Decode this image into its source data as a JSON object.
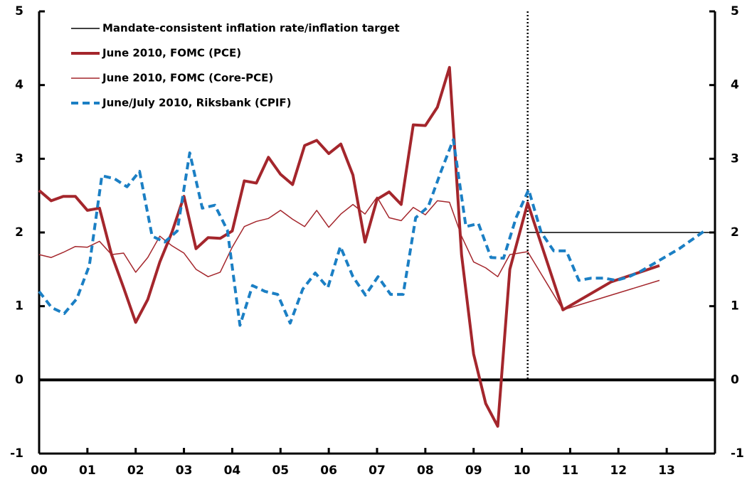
{
  "chart_data": {
    "type": "line",
    "xlim": [
      2000,
      2014
    ],
    "xticks": [
      {
        "value": 2000,
        "label": "00"
      },
      {
        "value": 2001,
        "label": "01"
      },
      {
        "value": 2002,
        "label": "02"
      },
      {
        "value": 2003,
        "label": "03"
      },
      {
        "value": 2004,
        "label": "04"
      },
      {
        "value": 2005,
        "label": "05"
      },
      {
        "value": 2006,
        "label": "06"
      },
      {
        "value": 2007,
        "label": "07"
      },
      {
        "value": 2008,
        "label": "08"
      },
      {
        "value": 2009,
        "label": "09"
      },
      {
        "value": 2010,
        "label": "10"
      },
      {
        "value": 2011,
        "label": "11"
      },
      {
        "value": 2012,
        "label": "12"
      },
      {
        "value": 2013,
        "label": "13"
      }
    ],
    "ylim": [
      -1,
      5
    ],
    "yticks": [
      -1,
      0,
      1,
      2,
      3,
      4,
      5
    ],
    "y2lim": [
      -1,
      5
    ],
    "y2ticks": [
      -1,
      0,
      1,
      2,
      3,
      4,
      5
    ],
    "grid": false,
    "legend": "upper left",
    "forecast_start": 2010.12,
    "series": [
      {
        "name": "Mandate-consistent inflation rate/inflation target",
        "color": "#000000",
        "line_width": 1.5,
        "dashed": false,
        "x": [
          2010.12,
          2014
        ],
        "values": [
          2,
          2
        ]
      },
      {
        "name": "June 2010, FOMC (PCE)",
        "color": "#a4262c",
        "line_width": 4,
        "dashed": false,
        "x": [
          2000,
          2000.25,
          2000.5,
          2000.75,
          2001,
          2001.25,
          2001.5,
          2001.75,
          2002,
          2002.25,
          2002.5,
          2002.75,
          2003,
          2003.25,
          2003.5,
          2003.75,
          2004,
          2004.25,
          2004.5,
          2004.75,
          2005,
          2005.25,
          2005.5,
          2005.75,
          2006,
          2006.25,
          2006.5,
          2006.75,
          2007,
          2007.25,
          2007.5,
          2007.75,
          2008,
          2008.25,
          2008.5,
          2008.75,
          2009,
          2009.25,
          2009.5,
          2009.75,
          2010.12,
          2010.85,
          2011.85,
          2012.85
        ],
        "values": [
          2.57,
          2.43,
          2.49,
          2.49,
          2.3,
          2.33,
          1.7,
          1.25,
          0.78,
          1.09,
          1.6,
          2.0,
          2.49,
          1.78,
          1.93,
          1.92,
          2.02,
          2.7,
          2.67,
          3.02,
          2.79,
          2.65,
          3.18,
          3.25,
          3.07,
          3.2,
          2.78,
          1.87,
          2.45,
          2.55,
          2.38,
          3.46,
          3.45,
          3.7,
          4.24,
          1.7,
          0.35,
          -0.32,
          -0.63,
          1.5,
          2.4,
          0.95,
          1.33,
          1.55
        ]
      },
      {
        "name": "June 2010, FOMC (Core-PCE)",
        "color": "#a4262c",
        "line_width": 1.5,
        "dashed": false,
        "x": [
          2000,
          2000.25,
          2000.5,
          2000.75,
          2001,
          2001.25,
          2001.5,
          2001.75,
          2002,
          2002.25,
          2002.5,
          2002.75,
          2003,
          2003.25,
          2003.5,
          2003.75,
          2004,
          2004.25,
          2004.5,
          2004.75,
          2005,
          2005.25,
          2005.5,
          2005.75,
          2006,
          2006.25,
          2006.5,
          2006.75,
          2007,
          2007.25,
          2007.5,
          2007.75,
          2008,
          2008.25,
          2008.5,
          2008.75,
          2009,
          2009.25,
          2009.5,
          2009.75,
          2010.12,
          2010.85,
          2011.85,
          2012.85
        ],
        "values": [
          1.7,
          1.66,
          1.73,
          1.81,
          1.8,
          1.88,
          1.7,
          1.72,
          1.46,
          1.66,
          1.95,
          1.82,
          1.72,
          1.5,
          1.4,
          1.46,
          1.8,
          2.08,
          2.15,
          2.19,
          2.3,
          2.18,
          2.08,
          2.3,
          2.07,
          2.25,
          2.38,
          2.25,
          2.48,
          2.2,
          2.16,
          2.34,
          2.24,
          2.43,
          2.41,
          1.95,
          1.6,
          1.52,
          1.4,
          1.7,
          1.74,
          0.95,
          1.15,
          1.35
        ]
      },
      {
        "name": "June/July 2010, Riksbank (CPIF)",
        "color": "#1b7fc4",
        "line_width": 4,
        "dashed": true,
        "x": [
          2000,
          2000.26,
          2000.52,
          2000.78,
          2001.04,
          2001.3,
          2001.56,
          2001.82,
          2002.08,
          2002.34,
          2002.6,
          2002.86,
          2003.12,
          2003.38,
          2003.64,
          2003.9,
          2004.16,
          2004.42,
          2004.68,
          2004.94,
          2005.2,
          2005.46,
          2005.72,
          2005.98,
          2006.24,
          2006.5,
          2006.76,
          2007.02,
          2007.28,
          2007.54,
          2007.8,
          2008.06,
          2008.32,
          2008.58,
          2008.84,
          2009.1,
          2009.36,
          2009.62,
          2009.88,
          2010.14,
          2010.4,
          2010.66,
          2010.92,
          2011.18,
          2011.44,
          2011.7,
          2011.96,
          2012.22,
          2012.48,
          2012.74,
          2013,
          2013.26,
          2013.52,
          2013.78
        ],
        "values": [
          1.2,
          0.98,
          0.9,
          1.1,
          1.55,
          2.77,
          2.73,
          2.62,
          2.83,
          1.95,
          1.87,
          2.02,
          3.08,
          2.33,
          2.37,
          2.03,
          0.74,
          1.28,
          1.2,
          1.16,
          0.77,
          1.23,
          1.45,
          1.25,
          1.81,
          1.4,
          1.15,
          1.4,
          1.16,
          1.16,
          2.2,
          2.35,
          2.82,
          3.26,
          2.08,
          2.12,
          1.66,
          1.65,
          2.2,
          2.58,
          2.0,
          1.75,
          1.75,
          1.35,
          1.38,
          1.38,
          1.35,
          1.4,
          1.48,
          1.58,
          1.68,
          1.78,
          1.9,
          2.02
        ]
      }
    ]
  }
}
